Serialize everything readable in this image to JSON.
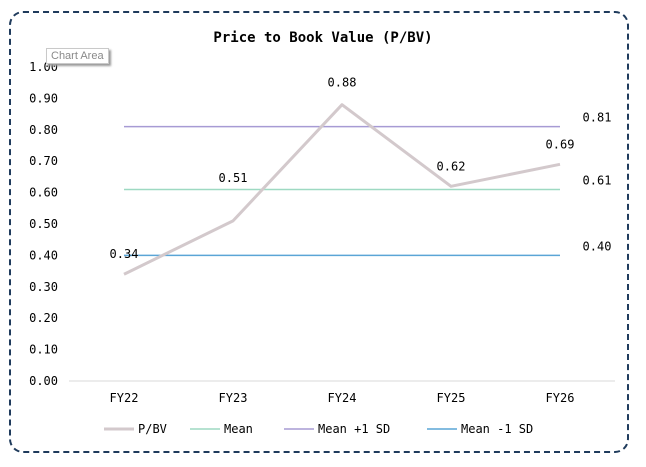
{
  "tooltip": "Chart Area",
  "chart_data": {
    "type": "line",
    "title": "Price to Book Value (P/BV)",
    "categories": [
      "FY22",
      "FY23",
      "FY24",
      "FY25",
      "FY26"
    ],
    "ylim": [
      0,
      1.0
    ],
    "yticks": [
      "0.00",
      "0.10",
      "0.20",
      "0.30",
      "0.40",
      "0.50",
      "0.60",
      "0.70",
      "0.80",
      "0.90",
      "1.00"
    ],
    "grid": false,
    "legend_position": "bottom",
    "series": [
      {
        "name": "P/BV",
        "values": [
          0.34,
          0.51,
          0.88,
          0.62,
          0.69
        ],
        "color": "#d3c9cc",
        "labels": [
          "0.34",
          "0.51",
          "0.88",
          "0.62",
          "0.69"
        ]
      },
      {
        "name": "Mean",
        "values": [
          0.61,
          0.61,
          0.61,
          0.61,
          0.61
        ],
        "color": "#9ed9c2",
        "end_label": "0.61"
      },
      {
        "name": "Mean +1 SD",
        "values": [
          0.81,
          0.81,
          0.81,
          0.81,
          0.81
        ],
        "color": "#a79bd4",
        "end_label": "0.81"
      },
      {
        "name": "Mean -1 SD",
        "values": [
          0.4,
          0.4,
          0.4,
          0.4,
          0.4
        ],
        "color": "#5aa5d6",
        "end_label": "0.40"
      }
    ]
  }
}
